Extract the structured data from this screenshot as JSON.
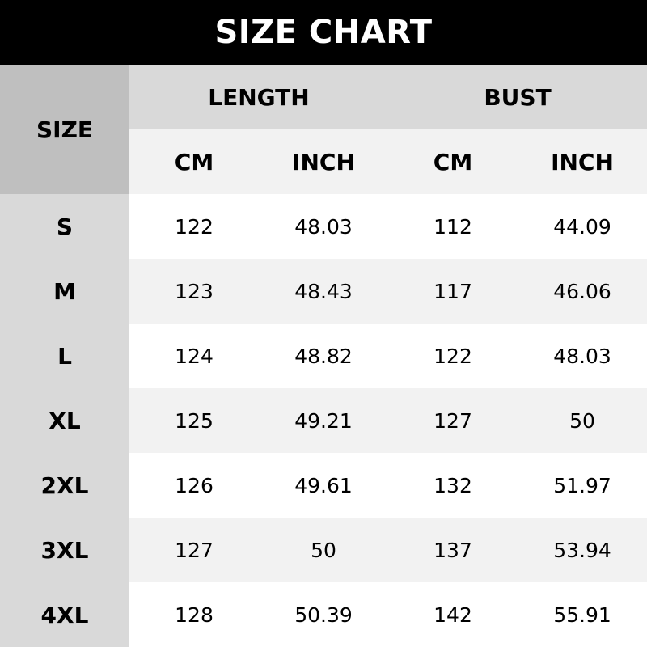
{
  "title": "SIZE CHART",
  "headers": {
    "size": "SIZE",
    "length": "LENGTH",
    "bust": "BUST",
    "cm": "CM",
    "inch": "INCH"
  },
  "rows": [
    {
      "size": "S",
      "length_cm": "122",
      "length_inch": "48.03",
      "bust_cm": "112",
      "bust_inch": "44.09"
    },
    {
      "size": "M",
      "length_cm": "123",
      "length_inch": "48.43",
      "bust_cm": "117",
      "bust_inch": "46.06"
    },
    {
      "size": "L",
      "length_cm": "124",
      "length_inch": "48.82",
      "bust_cm": "122",
      "bust_inch": "48.03"
    },
    {
      "size": "XL",
      "length_cm": "125",
      "length_inch": "49.21",
      "bust_cm": "127",
      "bust_inch": "50"
    },
    {
      "size": "2XL",
      "length_cm": "126",
      "length_inch": "49.61",
      "bust_cm": "132",
      "bust_inch": "51.97"
    },
    {
      "size": "3XL",
      "length_cm": "127",
      "length_inch": "50",
      "bust_cm": "137",
      "bust_inch": "53.94"
    },
    {
      "size": "4XL",
      "length_cm": "128",
      "length_inch": "50.39",
      "bust_cm": "142",
      "bust_inch": "55.91"
    }
  ],
  "colors": {
    "title_bg": "#000000",
    "size_header_bg": "#bfbfbf",
    "group_header_bg": "#d9d9d9",
    "sub_header_bg": "#f2f2f2",
    "row_alt_bg": "#f2f2f2"
  }
}
